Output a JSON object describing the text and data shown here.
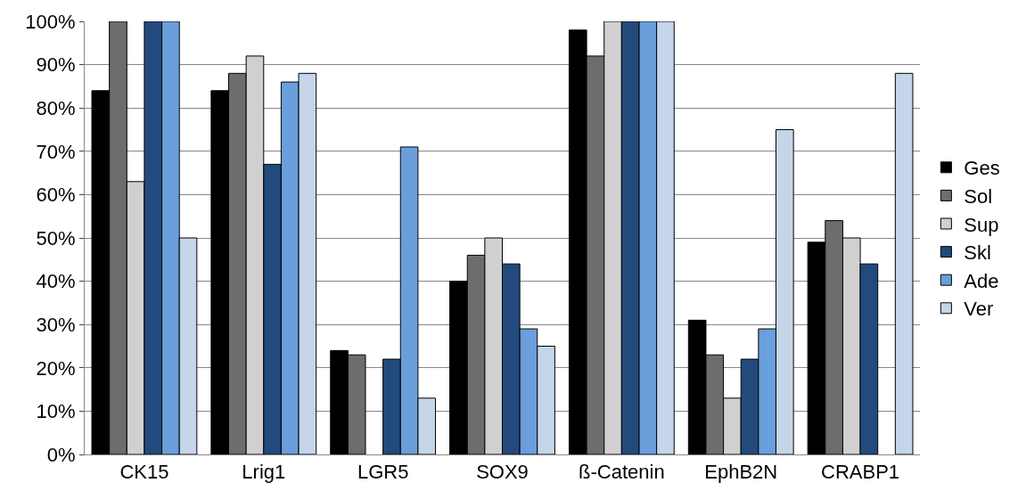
{
  "chart_data": {
    "type": "bar",
    "categories": [
      "CK15",
      "Lrig1",
      "LGR5",
      "SOX9",
      "ß-Catenin",
      "EphB2N",
      "CRABP1"
    ],
    "series": [
      {
        "name": "Ges",
        "color": "#000000",
        "values": [
          84,
          84,
          24,
          40,
          98,
          31,
          49
        ]
      },
      {
        "name": "Sol",
        "color": "#6d6d6d",
        "values": [
          100,
          88,
          23,
          46,
          92,
          23,
          54
        ]
      },
      {
        "name": "Sup",
        "color": "#d0d0d0",
        "values": [
          63,
          92,
          null,
          50,
          100,
          13,
          50
        ]
      },
      {
        "name": "Skl",
        "color": "#234a7c",
        "values": [
          100,
          67,
          22,
          44,
          100,
          22,
          44
        ]
      },
      {
        "name": "Ade",
        "color": "#6a9fdb",
        "values": [
          100,
          86,
          71,
          29,
          100,
          29,
          null
        ]
      },
      {
        "name": "Ver",
        "color": "#c5d5ea",
        "values": [
          50,
          88,
          13,
          25,
          100,
          75,
          88
        ]
      }
    ],
    "ylim": [
      0,
      100
    ],
    "yticks": [
      {
        "value": 0,
        "label": "0%"
      },
      {
        "value": 10,
        "label": "10%"
      },
      {
        "value": 20,
        "label": "20%"
      },
      {
        "value": 30,
        "label": "30%"
      },
      {
        "value": 40,
        "label": "40%"
      },
      {
        "value": 50,
        "label": "50%"
      },
      {
        "value": 60,
        "label": "60%"
      },
      {
        "value": 70,
        "label": "70%"
      },
      {
        "value": 80,
        "label": "80%"
      },
      {
        "value": 90,
        "label": "90%"
      },
      {
        "value": 100,
        "label": "100%"
      }
    ],
    "grid": "y",
    "legend": "right"
  }
}
